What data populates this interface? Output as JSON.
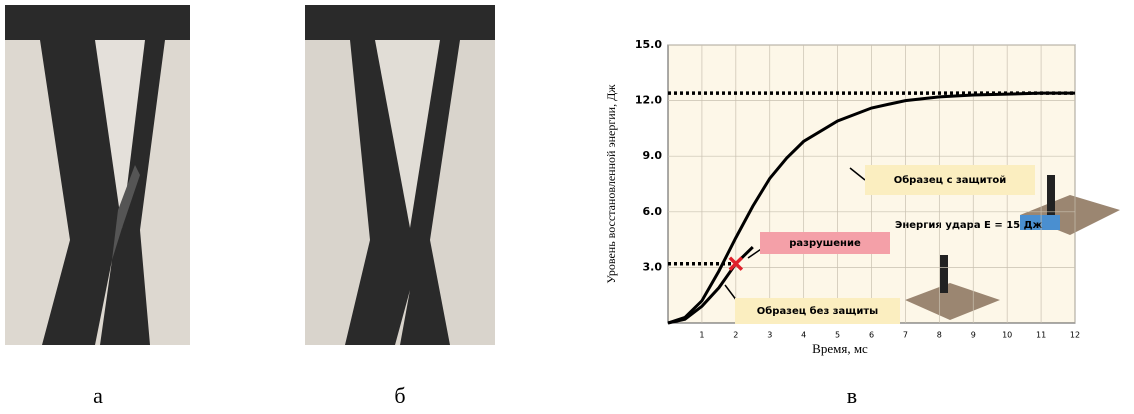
{
  "captions": [
    "а",
    "б",
    "в"
  ],
  "chart_data": {
    "type": "line",
    "xlabel": "Время, мс",
    "ylabel": "Уровень восстановленной энергии, Дж",
    "annotation": "Энергия удара E = 15 Дж",
    "failure": {
      "label": "разрушение",
      "x": 2,
      "y": 3.2,
      "color": "#e0202a"
    },
    "reference_lines": [
      12.4,
      3.2
    ],
    "x": [
      0,
      0.5,
      1,
      1.5,
      2,
      2.5,
      3,
      3.5,
      4,
      5,
      6,
      7,
      8,
      9,
      10,
      11,
      12
    ],
    "series": [
      {
        "name": "Образец с защитой",
        "color": "#000000",
        "values": [
          0,
          0.3,
          1.2,
          2.8,
          4.6,
          6.3,
          7.8,
          8.9,
          9.8,
          10.9,
          11.6,
          12.0,
          12.2,
          12.3,
          12.35,
          12.4,
          12.4
        ]
      },
      {
        "name": "Образец без защиты",
        "color": "#000000",
        "values": [
          0,
          0.2,
          0.9,
          1.9,
          3.2,
          4.1,
          null,
          null,
          null,
          null,
          null,
          null,
          null,
          null,
          null,
          null,
          null
        ]
      }
    ],
    "xlim": [
      0,
      12
    ],
    "xticks": [
      1,
      2,
      3,
      4,
      5,
      6,
      7,
      8,
      9,
      10,
      11,
      12
    ],
    "ylim": [
      0,
      15
    ],
    "yticks": [
      {
        "value": 3,
        "label": "3.0"
      },
      {
        "value": 6,
        "label": "6.0"
      },
      {
        "value": 9,
        "label": "9.0"
      },
      {
        "value": 12,
        "label": "12.0"
      },
      {
        "value": 15,
        "label": "15.0"
      }
    ],
    "grid": true
  }
}
